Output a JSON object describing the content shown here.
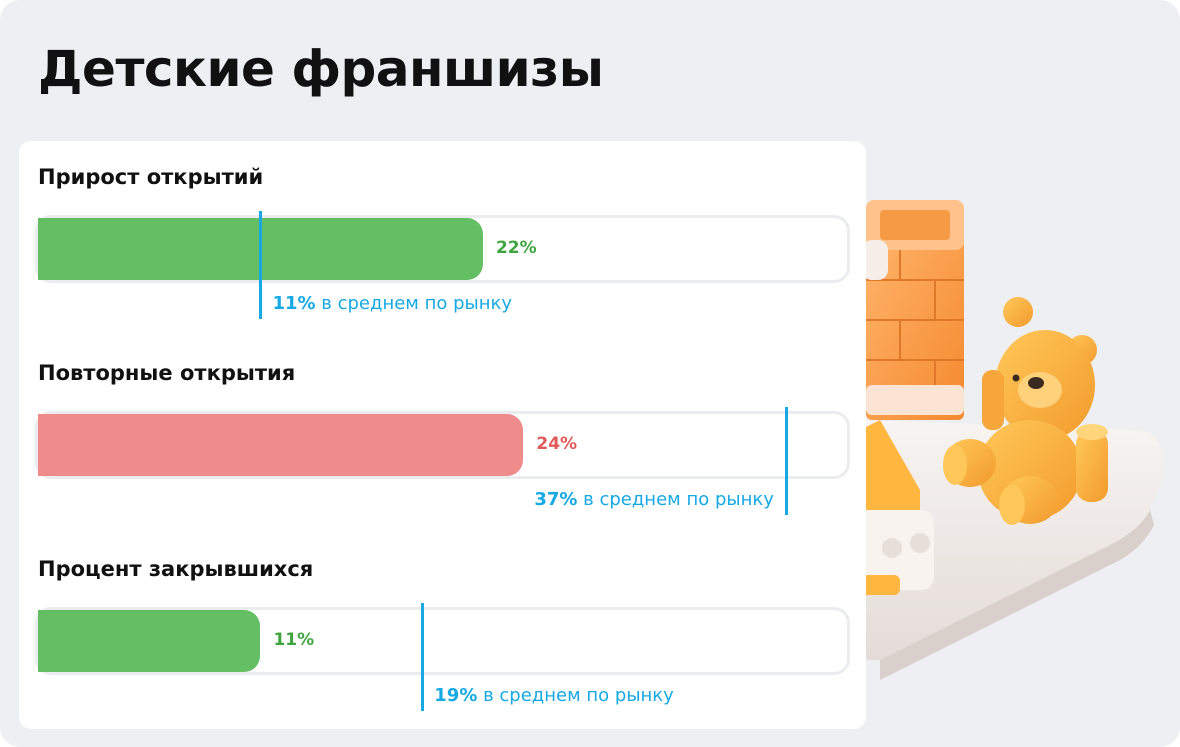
{
  "title": "Детские франшизы",
  "chart_data": {
    "type": "bar",
    "orientation": "horizontal",
    "xlim": [
      0,
      40
    ],
    "avg_suffix": "в среднем по рынку",
    "metrics": [
      {
        "label": "Прирост открытий",
        "value": 22,
        "value_text": "22%",
        "market_avg": 11,
        "avg_text": "11%",
        "status": "good",
        "avg_label_side": "right"
      },
      {
        "label": "Повторные открытия",
        "value": 24,
        "value_text": "24%",
        "market_avg": 37,
        "avg_text": "37%",
        "status": "bad",
        "avg_label_side": "left"
      },
      {
        "label": "Процент закрывшихся",
        "value": 11,
        "value_text": "11%",
        "market_avg": 19,
        "avg_text": "19%",
        "status": "good",
        "avg_label_side": "right"
      }
    ]
  },
  "colors": {
    "good": "#64bf64",
    "bad": "#f08b8b",
    "avg": "#16a9e4"
  },
  "illustration": "toy-blocks-teddy-bear-illustration"
}
